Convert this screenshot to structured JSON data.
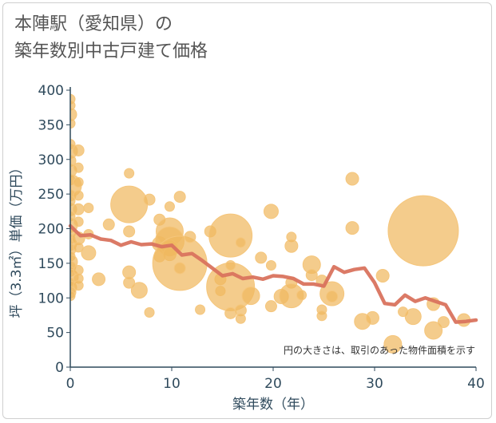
{
  "title": {
    "line1": "本陣駅（愛知県）の",
    "line2": "築年数別中古戸建て価格"
  },
  "colors": {
    "bubble": "#f0b860",
    "bubble_stroke": "#f5c67c",
    "line": "#d9735e",
    "axis": "#2f4a5c",
    "grid": "#e3e3e3"
  },
  "chart_data": {
    "type": "scatter",
    "xlabel": "築年数（年）",
    "ylabel": "坪（3.3㎡）単価（万円）",
    "xlim": [
      0,
      40
    ],
    "ylim": [
      0,
      400
    ],
    "xticks": [
      0,
      10,
      20,
      30,
      40
    ],
    "yticks": [
      0,
      50,
      100,
      150,
      200,
      250,
      300,
      350,
      400
    ],
    "grid": false,
    "annotation": "円の大きさは、取引のあった物件面積を示す",
    "bubbles": [
      {
        "x": 0,
        "y": 387,
        "r": 6
      },
      {
        "x": 0,
        "y": 378,
        "r": 6
      },
      {
        "x": 0,
        "y": 365,
        "r": 8
      },
      {
        "x": 0,
        "y": 352,
        "r": 6
      },
      {
        "x": 0,
        "y": 322,
        "r": 6
      },
      {
        "x": 0,
        "y": 312,
        "r": 9
      },
      {
        "x": 0,
        "y": 298,
        "r": 7
      },
      {
        "x": 0,
        "y": 284,
        "r": 8
      },
      {
        "x": 0,
        "y": 270,
        "r": 6
      },
      {
        "x": 0,
        "y": 262,
        "r": 14
      },
      {
        "x": 0,
        "y": 248,
        "r": 7
      },
      {
        "x": 0,
        "y": 240,
        "r": 6
      },
      {
        "x": 0,
        "y": 228,
        "r": 8
      },
      {
        "x": 0,
        "y": 218,
        "r": 6
      },
      {
        "x": 0,
        "y": 205,
        "r": 9
      },
      {
        "x": 0,
        "y": 195,
        "r": 7
      },
      {
        "x": 0,
        "y": 185,
        "r": 6
      },
      {
        "x": 0,
        "y": 178,
        "r": 8
      },
      {
        "x": 0,
        "y": 170,
        "r": 7
      },
      {
        "x": 0,
        "y": 160,
        "r": 6
      },
      {
        "x": 0,
        "y": 152,
        "r": 9
      },
      {
        "x": 0,
        "y": 145,
        "r": 7
      },
      {
        "x": 0,
        "y": 138,
        "r": 6
      },
      {
        "x": 0,
        "y": 130,
        "r": 10
      },
      {
        "x": 0,
        "y": 122,
        "r": 6
      },
      {
        "x": 0,
        "y": 115,
        "r": 8
      },
      {
        "x": 0,
        "y": 108,
        "r": 7
      },
      {
        "x": 0,
        "y": 103,
        "r": 6
      },
      {
        "x": 0.8,
        "y": 313,
        "r": 7
      },
      {
        "x": 0.8,
        "y": 288,
        "r": 6
      },
      {
        "x": 0.8,
        "y": 267,
        "r": 6
      },
      {
        "x": 0.8,
        "y": 248,
        "r": 6
      },
      {
        "x": 0.8,
        "y": 228,
        "r": 7
      },
      {
        "x": 0.8,
        "y": 210,
        "r": 6
      },
      {
        "x": 0.8,
        "y": 186,
        "r": 8
      },
      {
        "x": 0.8,
        "y": 173,
        "r": 6
      },
      {
        "x": 0.8,
        "y": 140,
        "r": 6
      },
      {
        "x": 0.8,
        "y": 128,
        "r": 6
      },
      {
        "x": 0.8,
        "y": 118,
        "r": 6
      },
      {
        "x": 1.8,
        "y": 230,
        "r": 6
      },
      {
        "x": 1.8,
        "y": 192,
        "r": 6
      },
      {
        "x": 1.8,
        "y": 165,
        "r": 9
      },
      {
        "x": 2.8,
        "y": 127,
        "r": 8
      },
      {
        "x": 3.8,
        "y": 206,
        "r": 7
      },
      {
        "x": 5.8,
        "y": 280,
        "r": 6
      },
      {
        "x": 5.8,
        "y": 235,
        "r": 23
      },
      {
        "x": 5.8,
        "y": 196,
        "r": 7
      },
      {
        "x": 5.8,
        "y": 137,
        "r": 8
      },
      {
        "x": 5.8,
        "y": 122,
        "r": 7
      },
      {
        "x": 6.8,
        "y": 111,
        "r": 10
      },
      {
        "x": 7.8,
        "y": 242,
        "r": 7
      },
      {
        "x": 7.8,
        "y": 79,
        "r": 6
      },
      {
        "x": 8.8,
        "y": 213,
        "r": 7
      },
      {
        "x": 8.8,
        "y": 178,
        "r": 9
      },
      {
        "x": 8.8,
        "y": 160,
        "r": 7
      },
      {
        "x": 9.8,
        "y": 232,
        "r": 6
      },
      {
        "x": 9.8,
        "y": 196,
        "r": 17
      },
      {
        "x": 9.8,
        "y": 182,
        "r": 18
      },
      {
        "x": 9.8,
        "y": 172,
        "r": 10
      },
      {
        "x": 9.8,
        "y": 163,
        "r": 8
      },
      {
        "x": 10.8,
        "y": 150,
        "r": 34
      },
      {
        "x": 10.8,
        "y": 246,
        "r": 7
      },
      {
        "x": 10.8,
        "y": 143,
        "r": 7
      },
      {
        "x": 11.8,
        "y": 188,
        "r": 7
      },
      {
        "x": 12.8,
        "y": 83,
        "r": 6
      },
      {
        "x": 13.8,
        "y": 196,
        "r": 7
      },
      {
        "x": 14.8,
        "y": 127,
        "r": 7
      },
      {
        "x": 14.8,
        "y": 110,
        "r": 6
      },
      {
        "x": 15.8,
        "y": 190,
        "r": 27
      },
      {
        "x": 15.8,
        "y": 116,
        "r": 30
      },
      {
        "x": 15.8,
        "y": 147,
        "r": 6
      },
      {
        "x": 15.8,
        "y": 78,
        "r": 7
      },
      {
        "x": 16.8,
        "y": 180,
        "r": 6
      },
      {
        "x": 16.8,
        "y": 82,
        "r": 7
      },
      {
        "x": 16.8,
        "y": 70,
        "r": 6
      },
      {
        "x": 17.8,
        "y": 103,
        "r": 11
      },
      {
        "x": 18.8,
        "y": 158,
        "r": 7
      },
      {
        "x": 19.8,
        "y": 225,
        "r": 9
      },
      {
        "x": 19.8,
        "y": 147,
        "r": 6
      },
      {
        "x": 19.8,
        "y": 88,
        "r": 7
      },
      {
        "x": 20.8,
        "y": 102,
        "r": 9
      },
      {
        "x": 21.8,
        "y": 188,
        "r": 6
      },
      {
        "x": 21.8,
        "y": 175,
        "r": 8
      },
      {
        "x": 21.8,
        "y": 122,
        "r": 7
      },
      {
        "x": 21.8,
        "y": 103,
        "r": 15
      },
      {
        "x": 22.8,
        "y": 104,
        "r": 6
      },
      {
        "x": 23.8,
        "y": 148,
        "r": 11
      },
      {
        "x": 23.8,
        "y": 133,
        "r": 7
      },
      {
        "x": 24.8,
        "y": 125,
        "r": 7
      },
      {
        "x": 24.8,
        "y": 83,
        "r": 6
      },
      {
        "x": 24.8,
        "y": 74,
        "r": 6
      },
      {
        "x": 25.8,
        "y": 106,
        "r": 15
      },
      {
        "x": 25.8,
        "y": 102,
        "r": 7
      },
      {
        "x": 27.8,
        "y": 272,
        "r": 8
      },
      {
        "x": 27.8,
        "y": 201,
        "r": 8
      },
      {
        "x": 28.8,
        "y": 66,
        "r": 10
      },
      {
        "x": 29.8,
        "y": 71,
        "r": 8
      },
      {
        "x": 30.8,
        "y": 132,
        "r": 8
      },
      {
        "x": 31.8,
        "y": 33,
        "r": 11
      },
      {
        "x": 32.8,
        "y": 80,
        "r": 6
      },
      {
        "x": 33.8,
        "y": 73,
        "r": 10
      },
      {
        "x": 34.8,
        "y": 197,
        "r": 44
      },
      {
        "x": 35.8,
        "y": 53,
        "r": 11
      },
      {
        "x": 35.8,
        "y": 91,
        "r": 8
      },
      {
        "x": 36.8,
        "y": 65,
        "r": 7
      },
      {
        "x": 38.8,
        "y": 68,
        "r": 8
      }
    ],
    "series": [
      {
        "x": [
          0,
          1,
          2,
          3,
          4,
          5,
          6,
          7,
          8,
          9,
          10,
          11,
          12,
          13,
          14,
          15,
          16,
          17,
          18,
          19,
          20,
          21,
          22,
          23,
          24,
          25,
          26,
          27,
          28,
          29,
          30,
          31,
          32,
          33,
          34,
          35,
          36,
          37,
          38,
          39,
          40
        ],
        "y": [
          204,
          190,
          191,
          185,
          183,
          176,
          181,
          177,
          178,
          174,
          176,
          162,
          164,
          154,
          143,
          132,
          135,
          128,
          130,
          127,
          132,
          131,
          128,
          120,
          120,
          117,
          145,
          137,
          141,
          143,
          122,
          92,
          90,
          104,
          95,
          100,
          95,
          90,
          65,
          66,
          68
        ]
      }
    ]
  }
}
